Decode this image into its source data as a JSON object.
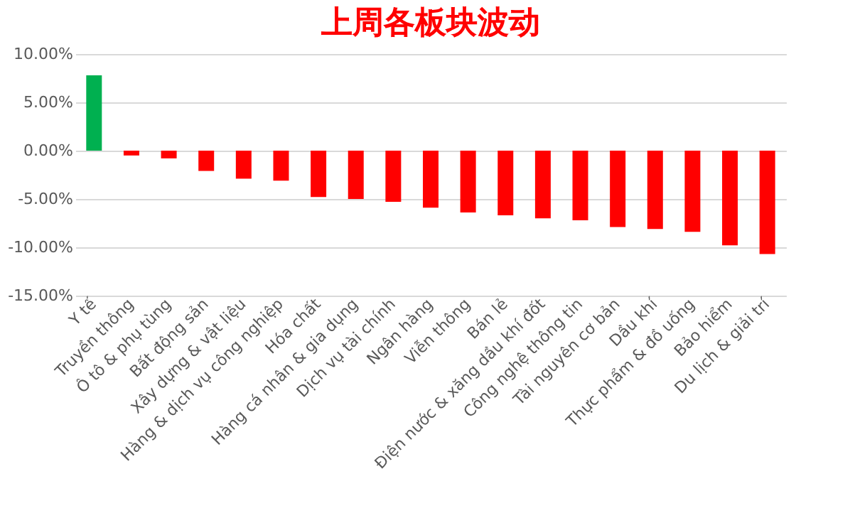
{
  "chart_data": {
    "type": "bar",
    "title": "上周各板块波动",
    "categories": [
      "Y tế",
      "Truyền thông",
      "Ô tô & phụ tùng",
      "Bất động sản",
      "Xây dựng & vật liệu",
      "Hàng & dịch vụ công nghiệp",
      "Hóa chất",
      "Hàng cá nhân & gia dụng",
      "Dịch vụ tài chính",
      "Ngân hàng",
      "Viễn thông",
      "Bán lẻ",
      "Điện nước & xăng dầu khí đốt",
      "Công nghệ thông tin",
      "Tài nguyên cơ bản",
      "Dầu khí",
      "Thực phẩm & đồ uống",
      "Bảo hiểm",
      "Du lịch & giải trí"
    ],
    "values": [
      7.8,
      -0.5,
      -0.8,
      -2.1,
      -2.9,
      -3.1,
      -4.8,
      -5.0,
      -5.3,
      -5.9,
      -6.4,
      -6.7,
      -7.0,
      -7.2,
      -7.9,
      -8.1,
      -8.4,
      -9.8,
      -10.7
    ],
    "colors": [
      "#00b050",
      "#ff0000",
      "#ff0000",
      "#ff0000",
      "#ff0000",
      "#ff0000",
      "#ff0000",
      "#ff0000",
      "#ff0000",
      "#ff0000",
      "#ff0000",
      "#ff0000",
      "#ff0000",
      "#ff0000",
      "#ff0000",
      "#ff0000",
      "#ff0000",
      "#ff0000",
      "#ff0000"
    ],
    "ylim": [
      -15,
      10
    ],
    "yticks": [
      {
        "value": -15,
        "label": "-15.00%"
      },
      {
        "value": -10,
        "label": "-10.00%"
      },
      {
        "value": -5,
        "label": "-5.00%"
      },
      {
        "value": 0,
        "label": "0.00%"
      },
      {
        "value": 5,
        "label": "5.00%"
      },
      {
        "value": 10,
        "label": "10.00%"
      }
    ],
    "grid": "y"
  }
}
